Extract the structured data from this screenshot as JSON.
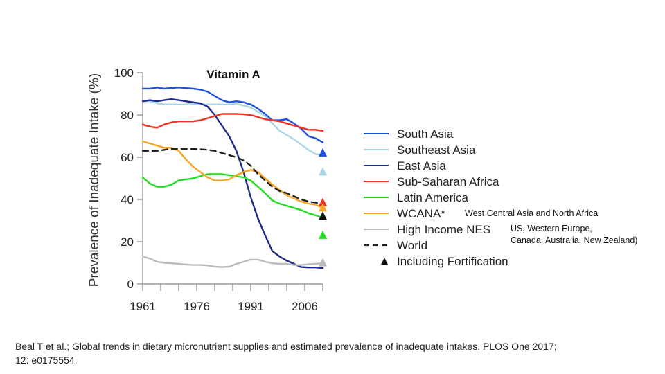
{
  "chart_data": {
    "type": "line",
    "title": "Vitamin A",
    "xlabel": "",
    "ylabel": "Prevalence of Inadequate Intake (%)",
    "xlim": [
      1961,
      2011
    ],
    "ylim": [
      0,
      100
    ],
    "x_ticks": [
      "1961",
      "1976",
      "1991",
      "2006"
    ],
    "y_ticks": [
      "0",
      "20",
      "40",
      "60",
      "80",
      "100"
    ],
    "grid": false,
    "legend_position": "right",
    "series": [
      {
        "name": "South Asia",
        "color": "#1f4fe0",
        "dash": false,
        "x": [
          1961,
          1963,
          1965,
          1967,
          1969,
          1971,
          1973,
          1975,
          1977,
          1979,
          1981,
          1983,
          1985,
          1987,
          1989,
          1991,
          1993,
          1995,
          1997,
          1999,
          2001,
          2003,
          2005,
          2007,
          2009,
          2011
        ],
        "y": [
          92.5,
          92.5,
          93,
          92.5,
          92.8,
          93,
          92.8,
          92.5,
          92,
          91,
          89,
          87,
          86,
          86.5,
          86,
          85,
          83,
          80.5,
          77.5,
          77.5,
          78,
          76,
          73.5,
          70,
          69,
          67
        ]
      },
      {
        "name": "Southeast Asia",
        "color": "#a8d4e8",
        "dash": false,
        "x": [
          1961,
          1963,
          1965,
          1967,
          1969,
          1971,
          1973,
          1975,
          1977,
          1979,
          1981,
          1983,
          1985,
          1987,
          1989,
          1991,
          1993,
          1995,
          1997,
          1999,
          2001,
          2003,
          2005,
          2007,
          2009,
          2011
        ],
        "y": [
          86.5,
          86.5,
          85.5,
          85,
          85,
          85,
          85,
          85.2,
          85,
          85,
          85,
          85,
          85,
          85.2,
          84.5,
          83.5,
          81.5,
          79.5,
          76,
          72.5,
          70.5,
          68.5,
          66,
          63.5,
          61.5,
          61
        ]
      },
      {
        "name": "East Asia",
        "color": "#1c2a8c",
        "dash": false,
        "x": [
          1961,
          1963,
          1965,
          1967,
          1969,
          1971,
          1973,
          1975,
          1977,
          1979,
          1981,
          1983,
          1985,
          1987,
          1989,
          1991,
          1993,
          1995,
          1997,
          1999,
          2001,
          2003,
          2005,
          2007,
          2009,
          2011
        ],
        "y": [
          86.5,
          87,
          86.5,
          87,
          87.5,
          87,
          86.5,
          86,
          85.5,
          84,
          80,
          75,
          70,
          63,
          53,
          41,
          31,
          23,
          15.5,
          13,
          11,
          9.5,
          8,
          7.8,
          7.8,
          7.5
        ]
      },
      {
        "name": "Sub-Saharan Africa",
        "color": "#ee3322",
        "dash": false,
        "x": [
          1961,
          1963,
          1965,
          1967,
          1969,
          1971,
          1973,
          1975,
          1977,
          1979,
          1981,
          1983,
          1985,
          1987,
          1989,
          1991,
          1993,
          1995,
          1997,
          1999,
          2001,
          2003,
          2005,
          2007,
          2009,
          2011
        ],
        "y": [
          75.5,
          74.5,
          74,
          75.5,
          76.5,
          77,
          77,
          77,
          77.5,
          78.5,
          79.5,
          80.5,
          80.5,
          80.5,
          80.3,
          80,
          79,
          78,
          77.5,
          77,
          76,
          75,
          74,
          73,
          73,
          72.5
        ]
      },
      {
        "name": "Latin America",
        "color": "#22dd22",
        "dash": false,
        "x": [
          1961,
          1963,
          1965,
          1967,
          1969,
          1971,
          1973,
          1975,
          1977,
          1979,
          1981,
          1983,
          1985,
          1987,
          1989,
          1991,
          1993,
          1995,
          1997,
          1999,
          2001,
          2003,
          2005,
          2007,
          2009,
          2011
        ],
        "y": [
          50.5,
          47.5,
          46,
          46,
          47,
          49,
          49.5,
          50,
          51,
          52,
          52,
          52,
          51.5,
          51,
          50.5,
          49,
          46,
          43,
          39.5,
          38,
          37,
          36,
          35,
          33.5,
          32.5,
          31.5
        ]
      },
      {
        "name": "WCANA*",
        "color": "#f5a623",
        "dash": false,
        "x": [
          1961,
          1963,
          1965,
          1967,
          1969,
          1971,
          1973,
          1975,
          1977,
          1979,
          1981,
          1983,
          1985,
          1987,
          1989,
          1991,
          1993,
          1995,
          1997,
          1999,
          2001,
          2003,
          2005,
          2007,
          2009,
          2011
        ],
        "y": [
          67.5,
          66.5,
          65.5,
          64.5,
          64.5,
          63,
          59,
          55.5,
          53,
          50.5,
          49,
          49,
          49.5,
          51.5,
          53,
          54,
          53,
          50,
          47,
          44.5,
          42,
          40.5,
          39,
          38,
          37.5,
          36
        ]
      },
      {
        "name": "High Income NES",
        "color": "#bbbbbb",
        "dash": false,
        "x": [
          1961,
          1963,
          1965,
          1967,
          1969,
          1971,
          1973,
          1975,
          1977,
          1979,
          1981,
          1983,
          1985,
          1987,
          1989,
          1991,
          1993,
          1995,
          1997,
          1999,
          2001,
          2003,
          2005,
          2007,
          2009,
          2011
        ],
        "y": [
          13,
          12,
          10.5,
          10,
          9.8,
          9.5,
          9.2,
          9,
          9,
          8.8,
          8.2,
          8,
          8.2,
          9.5,
          10.5,
          11.5,
          11.5,
          10.5,
          9.8,
          9.5,
          9.5,
          9,
          9,
          9.3,
          9.5,
          9.8
        ]
      },
      {
        "name": "World",
        "color": "#222222",
        "dash": true,
        "x": [
          1961,
          1963,
          1965,
          1967,
          1969,
          1971,
          1973,
          1975,
          1977,
          1979,
          1981,
          1983,
          1985,
          1987,
          1989,
          1991,
          1993,
          1995,
          1997,
          1999,
          2001,
          2003,
          2005,
          2007,
          2009,
          2011
        ],
        "y": [
          63,
          63,
          63,
          63.5,
          64,
          64,
          64,
          64,
          63.8,
          63.5,
          63,
          62,
          61,
          60,
          58.5,
          56,
          52,
          49,
          46,
          44,
          43,
          41.5,
          40,
          39,
          38.5,
          38
        ]
      }
    ],
    "fortification_markers": [
      {
        "series": "South Asia",
        "x": 2011,
        "y": 62,
        "color": "#1f4fe0"
      },
      {
        "series": "Southeast Asia",
        "x": 2011,
        "y": 53,
        "color": "#a8d4e8"
      },
      {
        "series": "Sub-Saharan Africa",
        "x": 2011,
        "y": 38.5,
        "color": "#ee3322"
      },
      {
        "series": "WCANA*",
        "x": 2011,
        "y": 36,
        "color": "#f5a623"
      },
      {
        "series": "World",
        "x": 2011,
        "y": 32,
        "color": "#111111"
      },
      {
        "series": "Latin America",
        "x": 2011,
        "y": 23,
        "color": "#22dd22"
      },
      {
        "series": "High Income NES",
        "x": 2011,
        "y": 10,
        "color": "#bbbbbb"
      }
    ],
    "legend": [
      {
        "label": "South Asia",
        "color": "#1f4fe0",
        "style": "solid"
      },
      {
        "label": "Southeast Asia",
        "color": "#a8d4e8",
        "style": "solid"
      },
      {
        "label": "East Asia",
        "color": "#1c2a8c",
        "style": "solid"
      },
      {
        "label": "Sub-Saharan Africa",
        "color": "#ee3322",
        "style": "solid"
      },
      {
        "label": "Latin America",
        "color": "#22dd22",
        "style": "solid"
      },
      {
        "label": "WCANA*",
        "color": "#f5a623",
        "style": "solid"
      },
      {
        "label": "High Income NES",
        "color": "#bbbbbb",
        "style": "solid"
      },
      {
        "label": "World",
        "color": "#222222",
        "style": "dashed"
      },
      {
        "label": "Including Fortification",
        "color": "#111111",
        "style": "triangle"
      }
    ],
    "annotations": {
      "wcana_note": "West Central Asia and North Africa",
      "high_income_note_line1": "US, Western Europe,",
      "high_income_note_line2": "Canada, Australia, New Zealand)"
    }
  },
  "citation": {
    "line1": "Beal T et al.; Global trends in dietary micronutrient supplies and estimated prevalence of inadequate intakes. PLOS One 2017;",
    "line2": "12: e0175554."
  }
}
